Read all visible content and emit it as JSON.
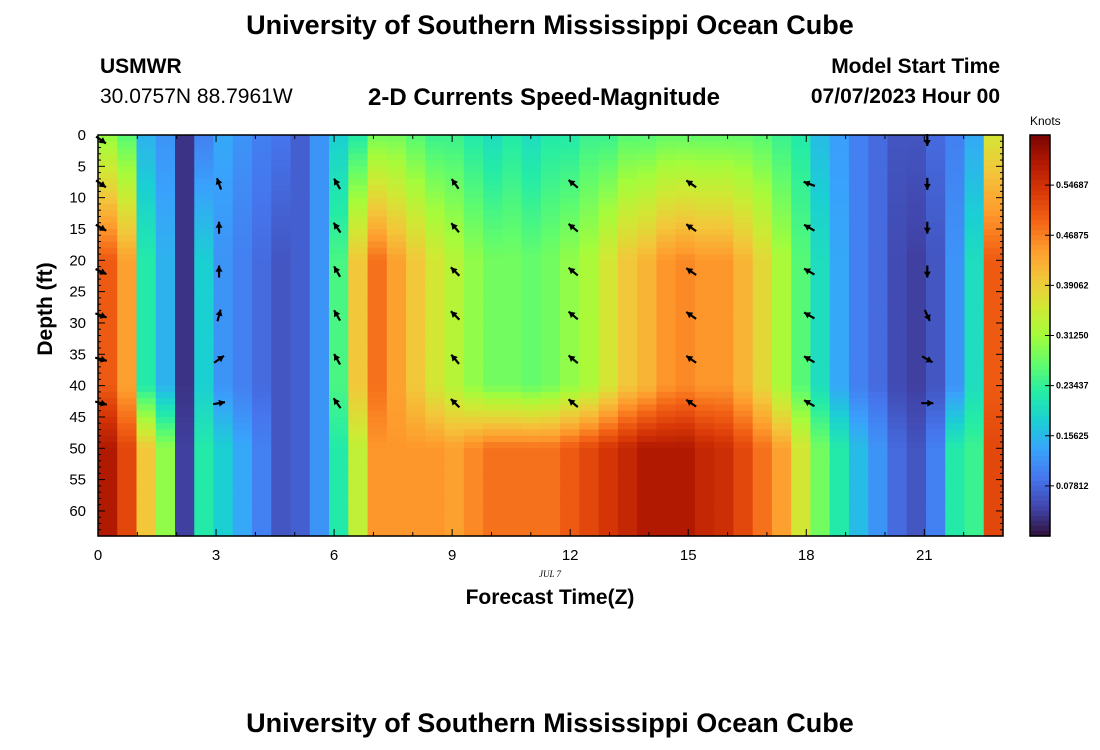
{
  "header": {
    "title": "University of Southern Mississippi Ocean Cube",
    "station_name": "USMWR",
    "coords": "30.0757N  88.7961W",
    "subtitle": "2-D Currents Speed-Magnitude",
    "model_start_label": "Model Start Time",
    "model_start_value": "07/07/2023 Hour 00"
  },
  "footer": {
    "title": "University of Southern Mississippi Ocean Cube"
  },
  "colorbar": {
    "unit_label": "Knots",
    "ticks": [
      "0.07812",
      "0.15625",
      "0.23437",
      "0.31250",
      "0.39062",
      "0.46875",
      "0.54687"
    ],
    "colors": [
      "#30123b",
      "#4145ab",
      "#4675ed",
      "#39a2fc",
      "#1bcfd4",
      "#24eca6",
      "#61fc6c",
      "#a4fc3b",
      "#d1e834",
      "#f3c63a",
      "#fe9b2d",
      "#f36315",
      "#d93807",
      "#b11901",
      "#7a0403"
    ]
  },
  "chart_data": {
    "type": "heatmap",
    "title": "2-D Currents Speed-Magnitude",
    "xlabel": "Forecast Time(Z)",
    "ylabel": "Depth (ft)",
    "date_label": "JUL 7",
    "units": "knots",
    "xlim": [
      0,
      23
    ],
    "ylim": [
      0,
      64
    ],
    "vmin": 0,
    "vmax": 0.625,
    "x_ticks": [
      0,
      3,
      6,
      9,
      12,
      15,
      18,
      21
    ],
    "y_ticks": [
      0,
      5,
      10,
      15,
      20,
      25,
      30,
      35,
      40,
      45,
      50,
      55,
      60
    ],
    "hours": [
      0,
      0.5,
      1,
      1.5,
      2,
      2.5,
      3,
      3.5,
      4,
      4.5,
      5,
      5.5,
      6,
      6.5,
      7,
      7.5,
      8,
      8.5,
      9,
      9.5,
      10,
      10.5,
      11,
      11.5,
      12,
      12.5,
      13,
      13.5,
      14,
      14.5,
      15,
      15.5,
      16,
      16.5,
      17,
      17.5,
      18,
      18.5,
      19,
      19.5,
      20,
      20.5,
      21,
      21.5,
      22,
      22.5,
      23
    ],
    "depth_profiles": {
      "depths_ft": [
        0,
        10,
        20,
        30,
        40,
        45,
        50,
        64
      ],
      "surface": [
        0.3,
        0.26,
        0.15,
        0.12,
        0.03,
        0.1,
        0.14,
        0.12,
        0.1,
        0.09,
        0.07,
        0.12,
        0.18,
        0.22,
        0.28,
        0.28,
        0.26,
        0.24,
        0.24,
        0.22,
        0.2,
        0.22,
        0.2,
        0.22,
        0.22,
        0.24,
        0.24,
        0.26,
        0.26,
        0.27,
        0.27,
        0.27,
        0.27,
        0.27,
        0.26,
        0.24,
        0.22,
        0.16,
        0.13,
        0.1,
        0.08,
        0.06,
        0.06,
        0.08,
        0.1,
        0.14,
        0.36
      ],
      "mid": [
        0.5,
        0.44,
        0.22,
        0.15,
        0.03,
        0.18,
        0.12,
        0.1,
        0.08,
        0.06,
        0.07,
        0.12,
        0.25,
        0.4,
        0.48,
        0.44,
        0.4,
        0.36,
        0.33,
        0.3,
        0.28,
        0.28,
        0.27,
        0.28,
        0.3,
        0.32,
        0.36,
        0.4,
        0.42,
        0.45,
        0.46,
        0.45,
        0.45,
        0.42,
        0.38,
        0.32,
        0.26,
        0.2,
        0.14,
        0.1,
        0.08,
        0.05,
        0.04,
        0.06,
        0.12,
        0.2,
        0.5
      ],
      "bottom": [
        0.58,
        0.52,
        0.4,
        0.3,
        0.04,
        0.22,
        0.18,
        0.14,
        0.1,
        0.06,
        0.07,
        0.12,
        0.22,
        0.34,
        0.45,
        0.45,
        0.45,
        0.45,
        0.44,
        0.46,
        0.48,
        0.48,
        0.48,
        0.48,
        0.5,
        0.52,
        0.54,
        0.56,
        0.58,
        0.58,
        0.58,
        0.56,
        0.55,
        0.52,
        0.48,
        0.44,
        0.36,
        0.28,
        0.22,
        0.16,
        0.12,
        0.08,
        0.06,
        0.1,
        0.22,
        0.24,
        0.52
      ]
    },
    "vector_depths_ft": [
      0,
      7,
      14,
      21,
      28,
      35,
      42
    ],
    "vectors": [
      {
        "hour": 0,
        "angles_deg": [
          -35,
          -35,
          -30,
          -25,
          -20,
          -15,
          -15
        ]
      },
      {
        "hour": 3,
        "angles_deg": [
          null,
          110,
          90,
          90,
          75,
          35,
          10
        ]
      },
      {
        "hour": 6,
        "angles_deg": [
          null,
          120,
          125,
          120,
          120,
          120,
          125
        ]
      },
      {
        "hour": 9,
        "angles_deg": [
          null,
          125,
          130,
          135,
          135,
          130,
          135
        ]
      },
      {
        "hour": 12,
        "angles_deg": [
          null,
          140,
          140,
          140,
          140,
          140,
          140
        ]
      },
      {
        "hour": 15,
        "angles_deg": [
          null,
          145,
          145,
          145,
          145,
          145,
          145
        ]
      },
      {
        "hour": 18,
        "angles_deg": [
          null,
          160,
          150,
          150,
          150,
          150,
          150
        ]
      },
      {
        "hour": 21,
        "angles_deg": [
          -90,
          -90,
          -90,
          -90,
          -65,
          -30,
          0
        ]
      }
    ]
  }
}
